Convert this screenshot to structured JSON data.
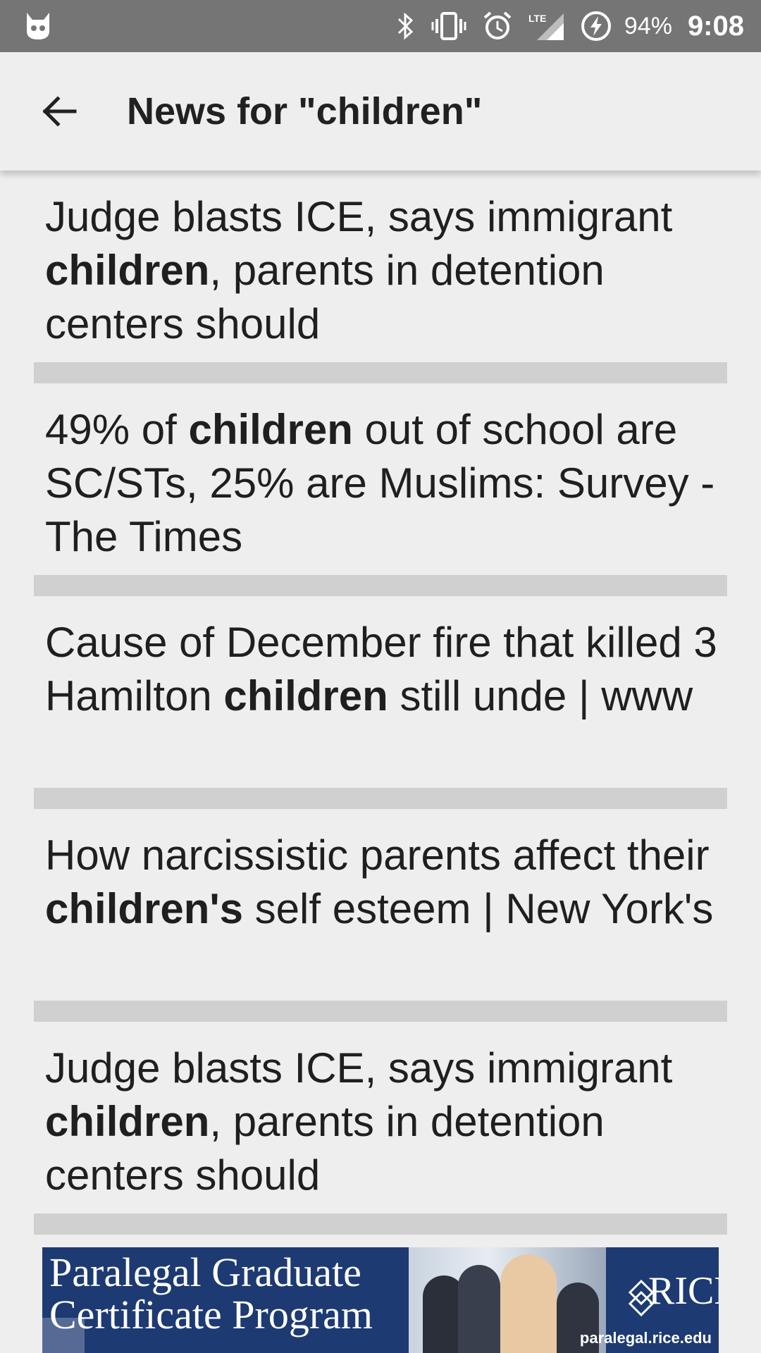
{
  "status_bar": {
    "battery_percent": "94%",
    "time": "9:08",
    "network": "LTE",
    "icons": [
      "cat-notification-icon",
      "bluetooth-icon",
      "vibrate-icon",
      "alarm-icon",
      "lte-signal-icon",
      "battery-charging-icon"
    ]
  },
  "app_bar": {
    "title": "News for \"children\"",
    "back_icon": "arrow-back-icon"
  },
  "news_items": [
    {
      "before": "Judge blasts ICE, says immigrant ",
      "bold": "children",
      "after": ", parents in detention centers should"
    },
    {
      "before": "49% of ",
      "bold": "children",
      "after": " out of school are SC/STs, 25% are Muslims: Survey - The Times"
    },
    {
      "before": "Cause of December fire that killed 3 Hamilton ",
      "bold": "children",
      "after": " still unde | www"
    },
    {
      "before": "How narcissistic parents affect their ",
      "bold": "children's",
      "after": " self esteem | New York's"
    },
    {
      "before": "Judge blasts ICE, says immigrant ",
      "bold": "children",
      "after": ", parents in detention centers should"
    }
  ],
  "ad": {
    "line1": "Paralegal Graduate",
    "line2": "Certificate Program",
    "brand": "RICE",
    "url": "paralegal.rice.edu",
    "bg_color": "#1d3a72"
  }
}
